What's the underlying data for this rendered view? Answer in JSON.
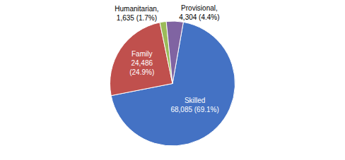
{
  "chart_data": {
    "type": "pie",
    "categories": [
      "Skilled",
      "Family",
      "Humanitarian",
      "Provisional"
    ],
    "values": [
      68085,
      24486,
      1635,
      4304
    ],
    "value_labels": [
      "Skilled\n68,085 (69.1%)",
      "Family\n24,486\n(24.9%)",
      "Humanitarian,\n1,635 (1.7%)",
      "Provisional,\n4,304 (4.4%)"
    ],
    "colors": [
      "#4472C4",
      "#C0504D",
      "#9BBB59",
      "#8064A2"
    ],
    "data_labels": true
  }
}
